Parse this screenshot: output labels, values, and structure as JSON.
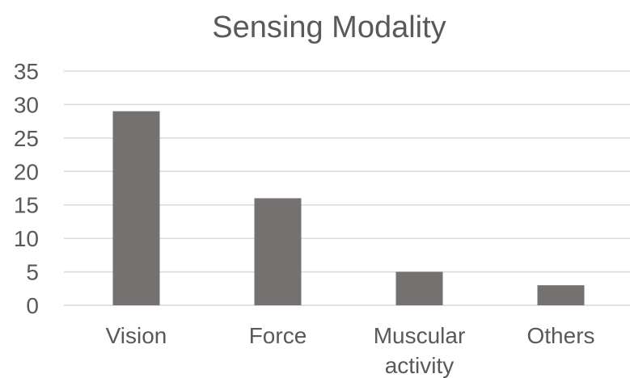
{
  "chart_data": {
    "type": "bar",
    "title": "Sensing Modality",
    "xlabel": "",
    "ylabel": "",
    "categories": [
      "Vision",
      "Force",
      "Muscular activity",
      "Others"
    ],
    "category_lines": [
      [
        "Vision"
      ],
      [
        "Force"
      ],
      [
        "Muscular",
        "activity"
      ],
      [
        "Others"
      ]
    ],
    "values": [
      29,
      16,
      5,
      3
    ],
    "ylim": [
      0,
      35
    ],
    "yticks": [
      0,
      5,
      10,
      15,
      20,
      25,
      30,
      35
    ],
    "grid": true,
    "legend": "none",
    "colors": {
      "bar": "#767171",
      "grid": "#d9d9d9",
      "axis_line": "#d9d9d9",
      "text": "#595959"
    }
  }
}
